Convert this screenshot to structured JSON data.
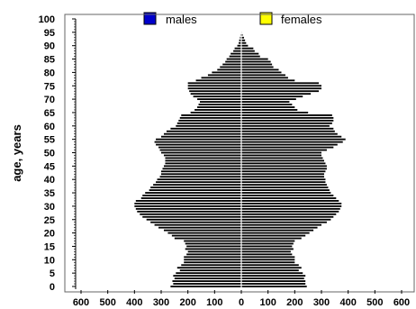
{
  "chart_data": {
    "type": "bar",
    "orientation": "horizontal-population-pyramid",
    "ylabel": "age, years",
    "xlabel": "",
    "xlim": [
      -600,
      600
    ],
    "ylim": [
      0,
      100
    ],
    "x_ticks": [
      "600",
      "500",
      "400",
      "300",
      "200",
      "100",
      "0",
      "100",
      "200",
      "300",
      "400",
      "500",
      "600"
    ],
    "y_ticks": [
      "0",
      "5",
      "10",
      "15",
      "20",
      "25",
      "30",
      "35",
      "40",
      "45",
      "50",
      "55",
      "60",
      "65",
      "70",
      "75",
      "80",
      "85",
      "90",
      "95",
      "100"
    ],
    "legend": [
      {
        "name": "males",
        "color": "#0000cc"
      },
      {
        "name": "females",
        "color": "#ffff00"
      }
    ],
    "legend_position": "top",
    "bar_color": "#000000",
    "ages": [
      0,
      1,
      2,
      3,
      4,
      5,
      6,
      7,
      8,
      9,
      10,
      11,
      12,
      13,
      14,
      15,
      16,
      17,
      18,
      19,
      20,
      21,
      22,
      23,
      24,
      25,
      26,
      27,
      28,
      29,
      30,
      31,
      32,
      33,
      34,
      35,
      36,
      37,
      38,
      39,
      40,
      41,
      42,
      43,
      44,
      45,
      46,
      47,
      48,
      49,
      50,
      51,
      52,
      53,
      54,
      55,
      56,
      57,
      58,
      59,
      60,
      61,
      62,
      63,
      64,
      65,
      66,
      67,
      68,
      69,
      70,
      71,
      72,
      73,
      74,
      75,
      76,
      77,
      78,
      79,
      80,
      81,
      82,
      83,
      84,
      85,
      86,
      87,
      88,
      89,
      90,
      91,
      92,
      93,
      94,
      95
    ],
    "series": [
      {
        "name": "males",
        "values": [
          265,
          255,
          258,
          250,
          255,
          245,
          230,
          240,
          225,
          215,
          215,
          215,
          205,
          200,
          210,
          205,
          210,
          215,
          250,
          260,
          275,
          290,
          310,
          325,
          340,
          355,
          370,
          380,
          390,
          395,
          400,
          400,
          395,
          375,
          370,
          360,
          345,
          340,
          330,
          320,
          315,
          305,
          300,
          300,
          295,
          290,
          285,
          285,
          285,
          290,
          300,
          305,
          310,
          320,
          325,
          320,
          300,
          290,
          280,
          265,
          245,
          240,
          235,
          230,
          225,
          190,
          175,
          165,
          160,
          155,
          165,
          180,
          190,
          195,
          200,
          200,
          200,
          170,
          150,
          125,
          110,
          90,
          80,
          70,
          60,
          55,
          45,
          40,
          30,
          25,
          15,
          10,
          8,
          5,
          3,
          1
        ]
      },
      {
        "name": "females",
        "values": [
          245,
          240,
          240,
          235,
          240,
          230,
          215,
          225,
          215,
          200,
          200,
          200,
          190,
          185,
          195,
          190,
          195,
          200,
          225,
          240,
          255,
          270,
          285,
          300,
          320,
          335,
          345,
          355,
          365,
          370,
          375,
          375,
          365,
          355,
          345,
          335,
          330,
          325,
          320,
          315,
          315,
          310,
          310,
          315,
          320,
          320,
          315,
          310,
          305,
          300,
          300,
          320,
          345,
          360,
          380,
          390,
          375,
          360,
          350,
          345,
          330,
          340,
          345,
          345,
          340,
          250,
          210,
          200,
          190,
          180,
          205,
          230,
          260,
          290,
          300,
          300,
          290,
          200,
          175,
          165,
          150,
          140,
          120,
          115,
          110,
          100,
          70,
          65,
          50,
          45,
          25,
          18,
          14,
          10,
          5,
          2
        ]
      }
    ]
  }
}
